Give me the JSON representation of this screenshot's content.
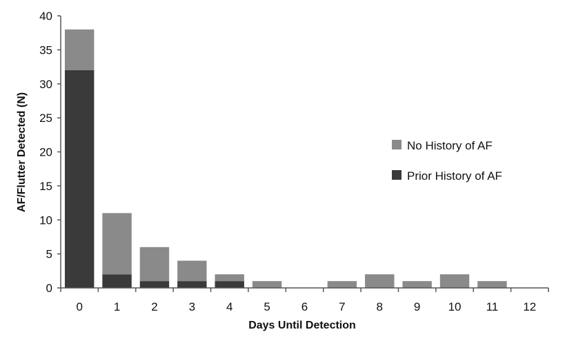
{
  "chart_data": {
    "type": "bar",
    "stacked": true,
    "title": "",
    "xlabel": "Days Until Detection",
    "ylabel": "AF/Flutter Detected (N)",
    "categories": [
      "0",
      "1",
      "2",
      "3",
      "4",
      "5",
      "6",
      "7",
      "8",
      "9",
      "10",
      "11",
      "12"
    ],
    "ylim": [
      0,
      40
    ],
    "yticks": [
      0,
      5,
      10,
      15,
      20,
      25,
      30,
      35,
      40
    ],
    "grid": false,
    "legend": "right",
    "series": [
      {
        "name": "Prior History of AF",
        "color": "#3a3a3a",
        "values": [
          32,
          2,
          1,
          1,
          1,
          0,
          0,
          0,
          0,
          0,
          0,
          0,
          0
        ]
      },
      {
        "name": "No History of AF",
        "color": "#8a8a8a",
        "values": [
          6,
          9,
          5,
          3,
          1,
          1,
          0,
          1,
          2,
          1,
          2,
          1,
          0
        ]
      }
    ],
    "legend_order": [
      "No History of AF",
      "Prior History of AF"
    ]
  }
}
